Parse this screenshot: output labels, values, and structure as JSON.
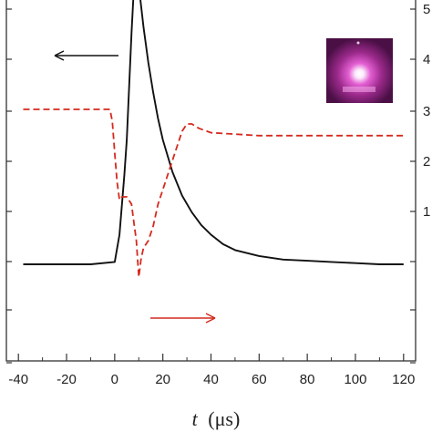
{
  "chart_data": {
    "type": "line",
    "title": "",
    "xlabel": "t (μs)",
    "xlabel_var": "t",
    "xlabel_unit": "(μs)",
    "xlim": [
      -45,
      125
    ],
    "x_ticks": [
      -40,
      -20,
      0,
      20,
      40,
      60,
      80,
      100,
      120
    ],
    "grid": false,
    "right_axis_tick_labels": [
      "1",
      "2",
      "3",
      "4",
      "5"
    ],
    "colors": {
      "black_series": "#111111",
      "red_series": "#d42a1e",
      "axes": "#333333"
    },
    "series": [
      {
        "style": "solid",
        "axis": "left",
        "direction_arrow": "left",
        "x": [
          -38,
          -30,
          -20,
          -10,
          0,
          2,
          4,
          5,
          6,
          7,
          8,
          9,
          10,
          12,
          14,
          16,
          18,
          20,
          24,
          28,
          32,
          36,
          40,
          45,
          50,
          60,
          70,
          80,
          90,
          100,
          110,
          120
        ],
        "y": [
          0.0,
          0.0,
          0.0,
          0.0,
          0.02,
          0.25,
          0.75,
          1.05,
          1.5,
          1.95,
          2.35,
          2.45,
          2.35,
          2.0,
          1.7,
          1.45,
          1.23,
          1.05,
          0.78,
          0.58,
          0.44,
          0.33,
          0.25,
          0.17,
          0.12,
          0.07,
          0.04,
          0.03,
          0.02,
          0.01,
          0.0,
          0.0
        ]
      },
      {
        "style": "dashed",
        "axis": "right",
        "direction_arrow": "right",
        "x": [
          -38,
          -30,
          -20,
          -10,
          -2,
          -1,
          0,
          1,
          2,
          3,
          5,
          7,
          8,
          9,
          10,
          11,
          12,
          14,
          16,
          18,
          20,
          23,
          26,
          28,
          30,
          32,
          35,
          40,
          50,
          60,
          80,
          100,
          120
        ],
        "y": [
          0.7,
          0.7,
          0.7,
          0.7,
          0.7,
          0.62,
          0.4,
          0.2,
          0.08,
          0.1,
          0.1,
          0.05,
          -0.08,
          -0.2,
          -0.45,
          -0.32,
          -0.25,
          -0.2,
          -0.1,
          0.05,
          0.15,
          0.3,
          0.45,
          0.55,
          0.6,
          0.6,
          0.57,
          0.54,
          0.53,
          0.52,
          0.52,
          0.52,
          0.52
        ]
      }
    ]
  }
}
